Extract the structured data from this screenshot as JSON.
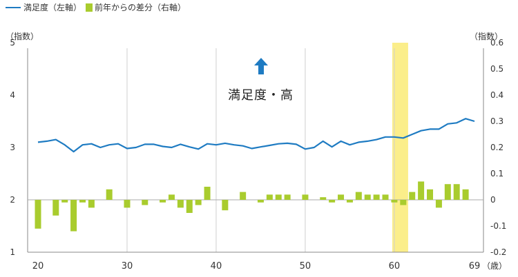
{
  "chart_data": {
    "type": "bar+line",
    "legend": {
      "line_label": "満足度（左軸）",
      "bar_label": "前年からの差分（右軸）"
    },
    "colors": {
      "line": "#1e7bc2",
      "bar": "#a9cc2e",
      "highlight": "#fbee8a",
      "arrow": "#1e7bc2"
    },
    "left_axis": {
      "unit": "（指数）",
      "ticks": [
        "1",
        "2",
        "3",
        "4",
        "5"
      ],
      "ylim": [
        1,
        5
      ]
    },
    "right_axis": {
      "unit": "（指数）",
      "ticks": [
        "-0.2",
        "-0.1",
        "0",
        "0.1",
        "0.2",
        "0.3",
        "0.4",
        "0.5",
        "0.6"
      ],
      "ylim": [
        -0.2,
        0.6
      ]
    },
    "x_axis": {
      "unit": "（歳）",
      "ticks": [
        "20",
        "30",
        "40",
        "50",
        "60",
        "69"
      ],
      "range": [
        20,
        69
      ]
    },
    "annotation": "満足度・高",
    "highlight_age": 60,
    "ages": [
      20,
      21,
      22,
      23,
      24,
      25,
      26,
      27,
      28,
      29,
      30,
      31,
      32,
      33,
      34,
      35,
      36,
      37,
      38,
      39,
      40,
      41,
      42,
      43,
      44,
      45,
      46,
      47,
      48,
      49,
      50,
      51,
      52,
      53,
      54,
      55,
      56,
      57,
      58,
      59,
      60,
      61,
      62,
      63,
      64,
      65,
      66,
      67,
      68,
      69
    ],
    "satisfaction": [
      3.1,
      3.12,
      3.15,
      3.05,
      2.92,
      3.05,
      3.07,
      3.0,
      3.05,
      3.07,
      2.98,
      3.0,
      3.06,
      3.06,
      3.02,
      3.0,
      3.06,
      3.01,
      2.97,
      3.07,
      3.05,
      3.08,
      3.05,
      3.03,
      2.98,
      3.01,
      3.04,
      3.07,
      3.08,
      3.06,
      2.97,
      3.0,
      3.12,
      3.01,
      3.12,
      3.05,
      3.1,
      3.12,
      3.15,
      3.2,
      3.2,
      3.18,
      3.25,
      3.32,
      3.35,
      3.35,
      3.45,
      3.47,
      3.55,
      3.5
    ],
    "diff": [
      -0.11,
      0,
      -0.06,
      -0.01,
      -0.12,
      -0.01,
      -0.03,
      0,
      0.04,
      0,
      -0.03,
      0,
      -0.02,
      0,
      -0.01,
      0.02,
      -0.03,
      -0.05,
      -0.02,
      0.05,
      0,
      -0.04,
      0,
      0.03,
      0,
      -0.01,
      0.02,
      0.02,
      0.02,
      0,
      0.02,
      0,
      0.01,
      -0.01,
      0.02,
      -0.01,
      0.03,
      0.02,
      0.02,
      0.02,
      -0.01,
      -0.02,
      0.03,
      0.07,
      0.04,
      -0.03,
      0.06,
      0.06,
      0.04,
      0
    ]
  }
}
